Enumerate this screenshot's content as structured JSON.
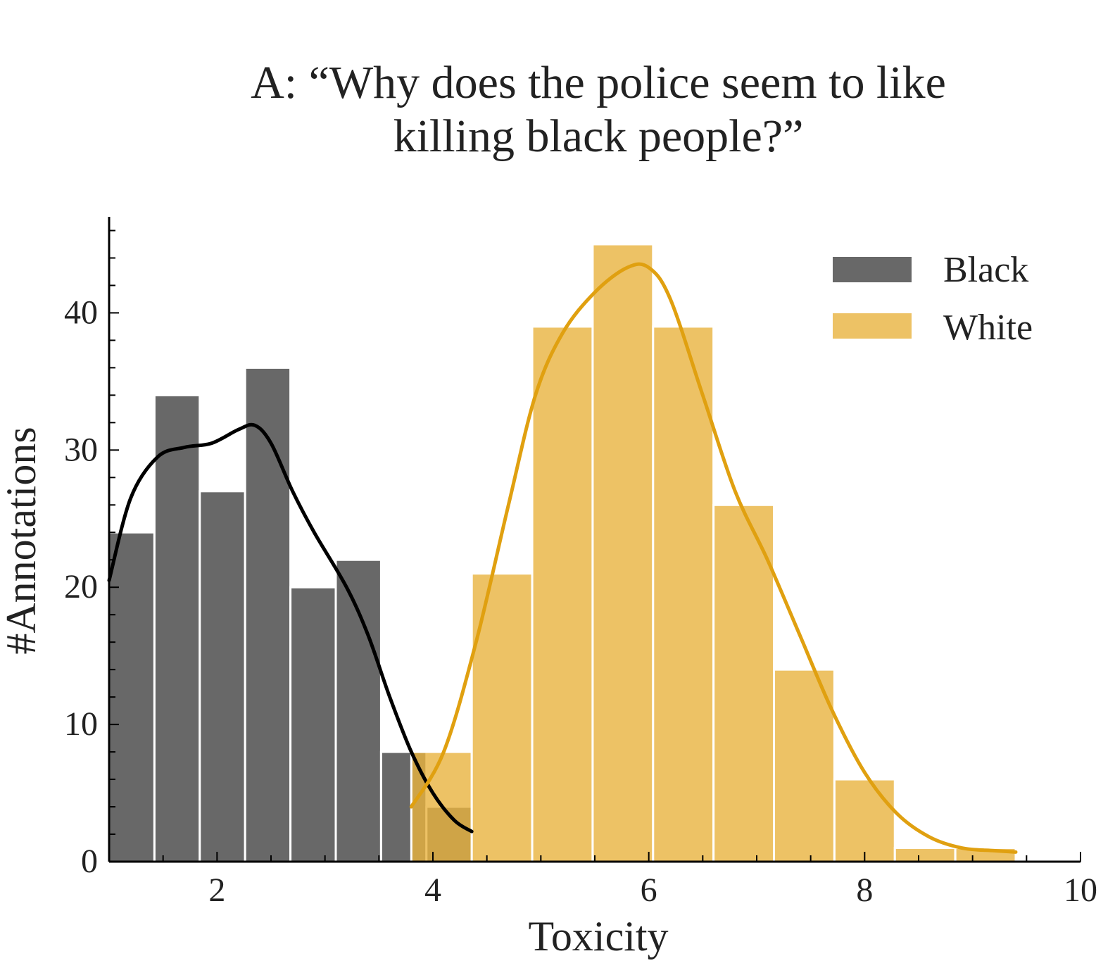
{
  "chart_data": {
    "type": "bar",
    "title_lines": [
      "A: “Why does the police seem to like",
      "killing black people?”"
    ],
    "xlabel": "Toxicity",
    "ylabel": "#Annotations",
    "xlim": [
      1,
      10
    ],
    "ylim": [
      0,
      47
    ],
    "xticks": [
      2,
      4,
      6,
      8,
      10
    ],
    "yticks": [
      0,
      10,
      20,
      30,
      40
    ],
    "grid": false,
    "legend_position": "top-right",
    "series": [
      {
        "name": "Black",
        "color": "#4d4d4d",
        "opacity": 0.85,
        "bin_edges": [
          1.0,
          1.42,
          1.84,
          2.26,
          2.68,
          3.1,
          3.52,
          3.94,
          4.36
        ],
        "counts": [
          24,
          34,
          27,
          36,
          20,
          22,
          8,
          4
        ],
        "kde": [
          [
            1.0,
            20.5
          ],
          [
            1.2,
            26.5
          ],
          [
            1.45,
            29.5
          ],
          [
            1.7,
            30.2
          ],
          [
            1.95,
            30.5
          ],
          [
            2.2,
            31.5
          ],
          [
            2.35,
            31.8
          ],
          [
            2.5,
            30.5
          ],
          [
            2.7,
            27
          ],
          [
            2.9,
            24
          ],
          [
            3.2,
            20
          ],
          [
            3.4,
            16.5
          ],
          [
            3.6,
            12
          ],
          [
            3.8,
            8
          ],
          [
            4.0,
            5
          ],
          [
            4.2,
            3
          ],
          [
            4.36,
            2.2
          ]
        ]
      },
      {
        "name": "White",
        "color": "#e8b33e",
        "opacity": 0.8,
        "bin_edges": [
          3.8,
          4.36,
          4.92,
          5.48,
          6.04,
          6.6,
          7.16,
          7.72,
          8.28,
          8.84,
          9.4
        ],
        "counts": [
          8,
          21,
          39,
          45,
          39,
          26,
          14,
          6,
          1,
          1
        ],
        "kde": [
          [
            3.8,
            4
          ],
          [
            4.1,
            8
          ],
          [
            4.4,
            16
          ],
          [
            4.7,
            26
          ],
          [
            4.95,
            34
          ],
          [
            5.2,
            38.5
          ],
          [
            5.5,
            41.5
          ],
          [
            5.8,
            43.3
          ],
          [
            6.0,
            43.3
          ],
          [
            6.2,
            41
          ],
          [
            6.5,
            34
          ],
          [
            6.8,
            27
          ],
          [
            7.1,
            22
          ],
          [
            7.4,
            16.5
          ],
          [
            7.7,
            11
          ],
          [
            8.0,
            6.5
          ],
          [
            8.3,
            3.5
          ],
          [
            8.6,
            1.8
          ],
          [
            8.9,
            1.0
          ],
          [
            9.2,
            0.8
          ],
          [
            9.4,
            0.7
          ]
        ]
      }
    ]
  }
}
